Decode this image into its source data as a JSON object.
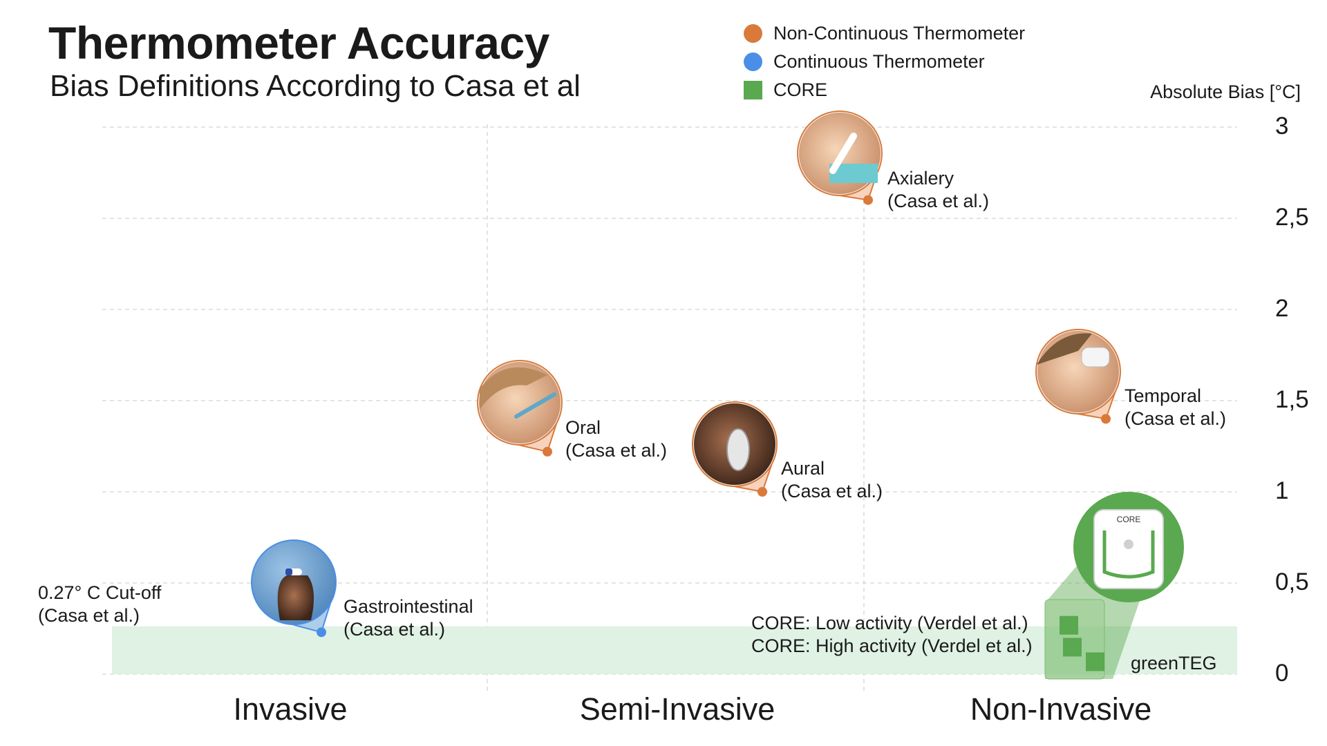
{
  "title": "Thermometer Accuracy",
  "subtitle": "Bias Definitions According to Casa et al",
  "legend": [
    {
      "label": "Non-Continuous Thermometer",
      "color": "#d97a3a",
      "shape": "circle"
    },
    {
      "label": "Continuous Thermometer",
      "color": "#4a8ee8",
      "shape": "circle"
    },
    {
      "label": "CORE",
      "color": "#5aa84f",
      "shape": "square"
    }
  ],
  "chart_data": {
    "type": "scatter",
    "ylabel": "Absolute Bias [°C]",
    "ylim": [
      0,
      3
    ],
    "yticks": [
      "0",
      "0,5",
      "1",
      "1,5",
      "2",
      "2,5",
      "3"
    ],
    "categories": [
      "Invasive",
      "Semi-Invasive",
      "Non-Invasive"
    ],
    "cutoff": {
      "value": 0.27,
      "label_line1": "0.27° C Cut-off",
      "label_line2": "(Casa et al.)"
    },
    "points": [
      {
        "name": "Gastrointestinal",
        "source": "(Casa et al.)",
        "category": "Invasive",
        "value": 0.23,
        "type": "Continuous Thermometer"
      },
      {
        "name": "Oral",
        "source": "(Casa et al.)",
        "category": "Semi-Invasive",
        "value": 1.22,
        "type": "Non-Continuous Thermometer"
      },
      {
        "name": "Aural",
        "source": "(Casa et al.)",
        "category": "Semi-Invasive",
        "value": 1.0,
        "type": "Non-Continuous Thermometer"
      },
      {
        "name": "Axialery",
        "source": "(Casa et al.)",
        "category": "Non-Invasive",
        "value": 2.6,
        "type": "Non-Continuous Thermometer"
      },
      {
        "name": "Temporal",
        "source": "(Casa et al.)",
        "category": "Non-Invasive",
        "value": 1.4,
        "type": "Non-Continuous Thermometer"
      }
    ],
    "core_points": [
      {
        "label": "CORE: Low activity (Verdel et al.)",
        "value": 0.27
      },
      {
        "label": "CORE: High activity  (Verdel et al.)",
        "value": 0.15
      },
      {
        "label": "greenTEG",
        "value": 0.07
      }
    ],
    "grid": true
  },
  "core_device_text": "CORE",
  "colors": {
    "orange": "#d97a3a",
    "blue": "#4a8ee8",
    "green": "#5aa84f",
    "band": "#dff2e4"
  }
}
